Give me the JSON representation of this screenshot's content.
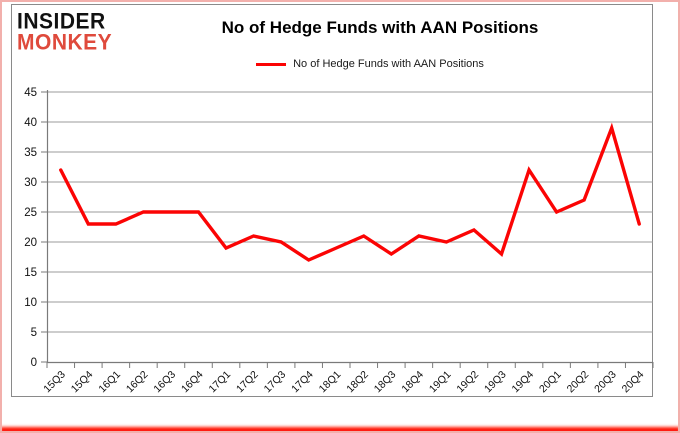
{
  "logo": {
    "line1": "INSIDER",
    "line2": "MONKEY"
  },
  "header": {
    "title": "No of Hedge Funds with AAN Positions"
  },
  "legend": {
    "label": "No of Hedge Funds with AAN Positions"
  },
  "colors": {
    "line": "#fb0404",
    "grid": "#9b9b9b",
    "axis": "#7a7a7a",
    "tick_label": "#111111",
    "logo_black": "#111111",
    "logo_red": "#df4a3c",
    "outer_border": "#f2b0ac",
    "bottom_glow": "#ff0000",
    "inner_border": "#8a8a8a"
  },
  "chart_data": {
    "type": "line",
    "title": "No of Hedge Funds with AAN Positions",
    "xlabel": "",
    "ylabel": "",
    "categories": [
      "15Q3",
      "15Q4",
      "16Q1",
      "16Q2",
      "16Q3",
      "16Q4",
      "17Q1",
      "17Q2",
      "17Q3",
      "17Q4",
      "18Q1",
      "18Q2",
      "18Q3",
      "18Q4",
      "19Q1",
      "19Q2",
      "19Q3",
      "19Q4",
      "20Q1",
      "20Q2",
      "20Q3",
      "20Q4"
    ],
    "series": [
      {
        "name": "No of Hedge Funds with AAN Positions",
        "color": "#fb0404",
        "values": [
          32,
          23,
          23,
          25,
          25,
          25,
          19,
          21,
          20,
          17,
          19,
          21,
          18,
          21,
          20,
          22,
          18,
          32,
          25,
          27,
          39,
          23
        ]
      }
    ],
    "ylim": [
      0,
      45
    ],
    "yticks": [
      0,
      5,
      10,
      15,
      20,
      25,
      30,
      35,
      40,
      45
    ],
    "grid": true,
    "legend_position": "top-center",
    "x_label_rotation_deg": 45
  }
}
